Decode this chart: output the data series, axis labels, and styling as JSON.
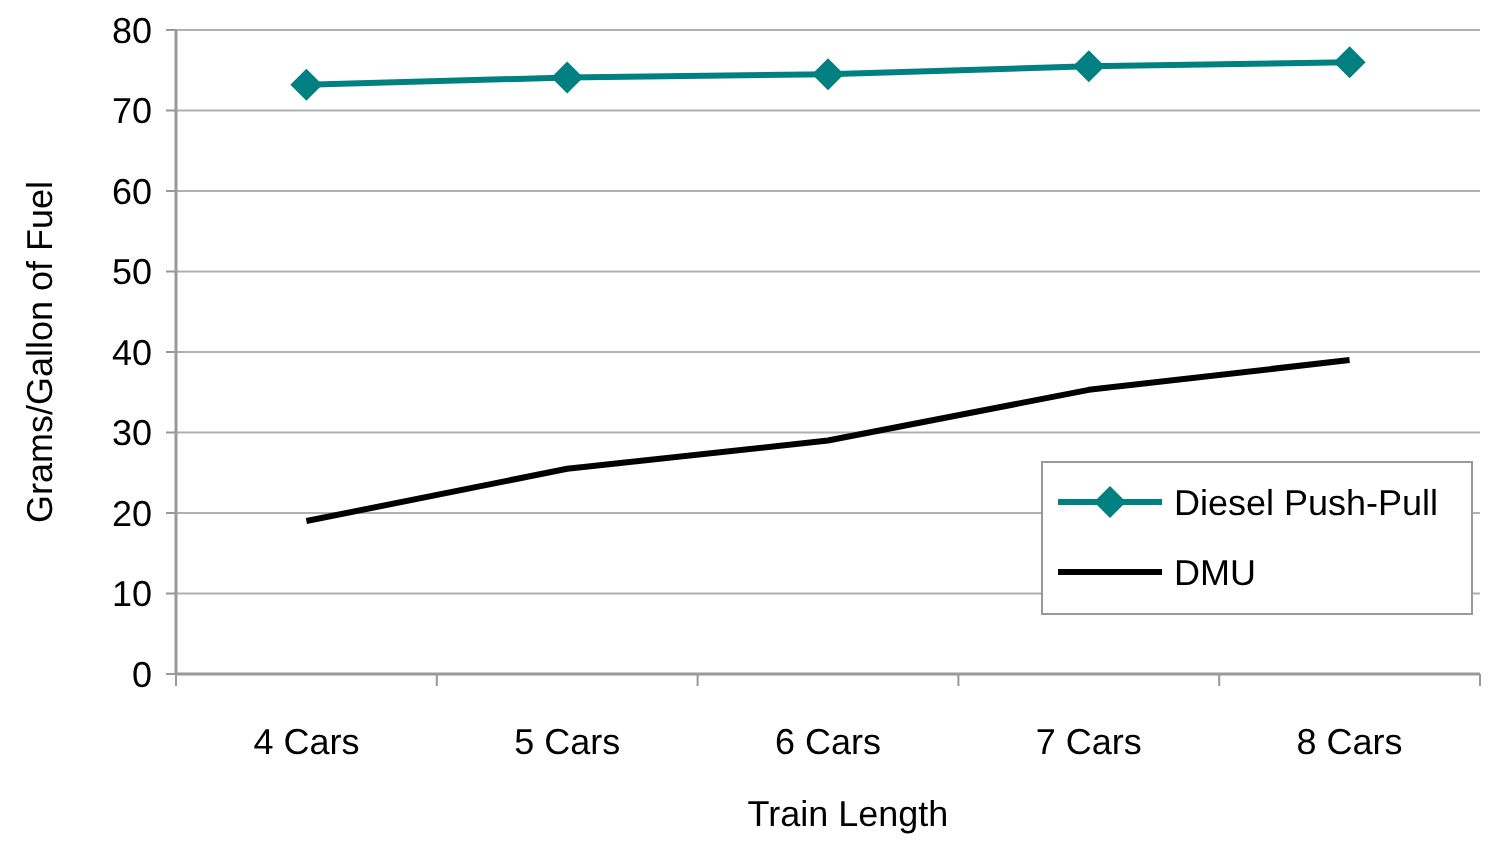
{
  "chart_data": {
    "type": "line",
    "xlabel": "Train Length",
    "ylabel": "Grams/Gallon of Fuel",
    "categories": [
      "4 Cars",
      "5 Cars",
      "6 Cars",
      "7 Cars",
      "8 Cars"
    ],
    "series": [
      {
        "name": "Diesel Push-Pull",
        "color": "#008080",
        "values": [
          73.2,
          74.1,
          74.5,
          75.5,
          76
        ],
        "marker": "diamond"
      },
      {
        "name": "DMU",
        "color": "#000000",
        "values": [
          19,
          25.5,
          29,
          35.3,
          39
        ],
        "marker": "none"
      }
    ],
    "ylim": [
      0,
      80
    ],
    "yticks": [
      0,
      10,
      20,
      30,
      40,
      50,
      60,
      70,
      80
    ],
    "grid": "y",
    "legend": "bottom right"
  }
}
